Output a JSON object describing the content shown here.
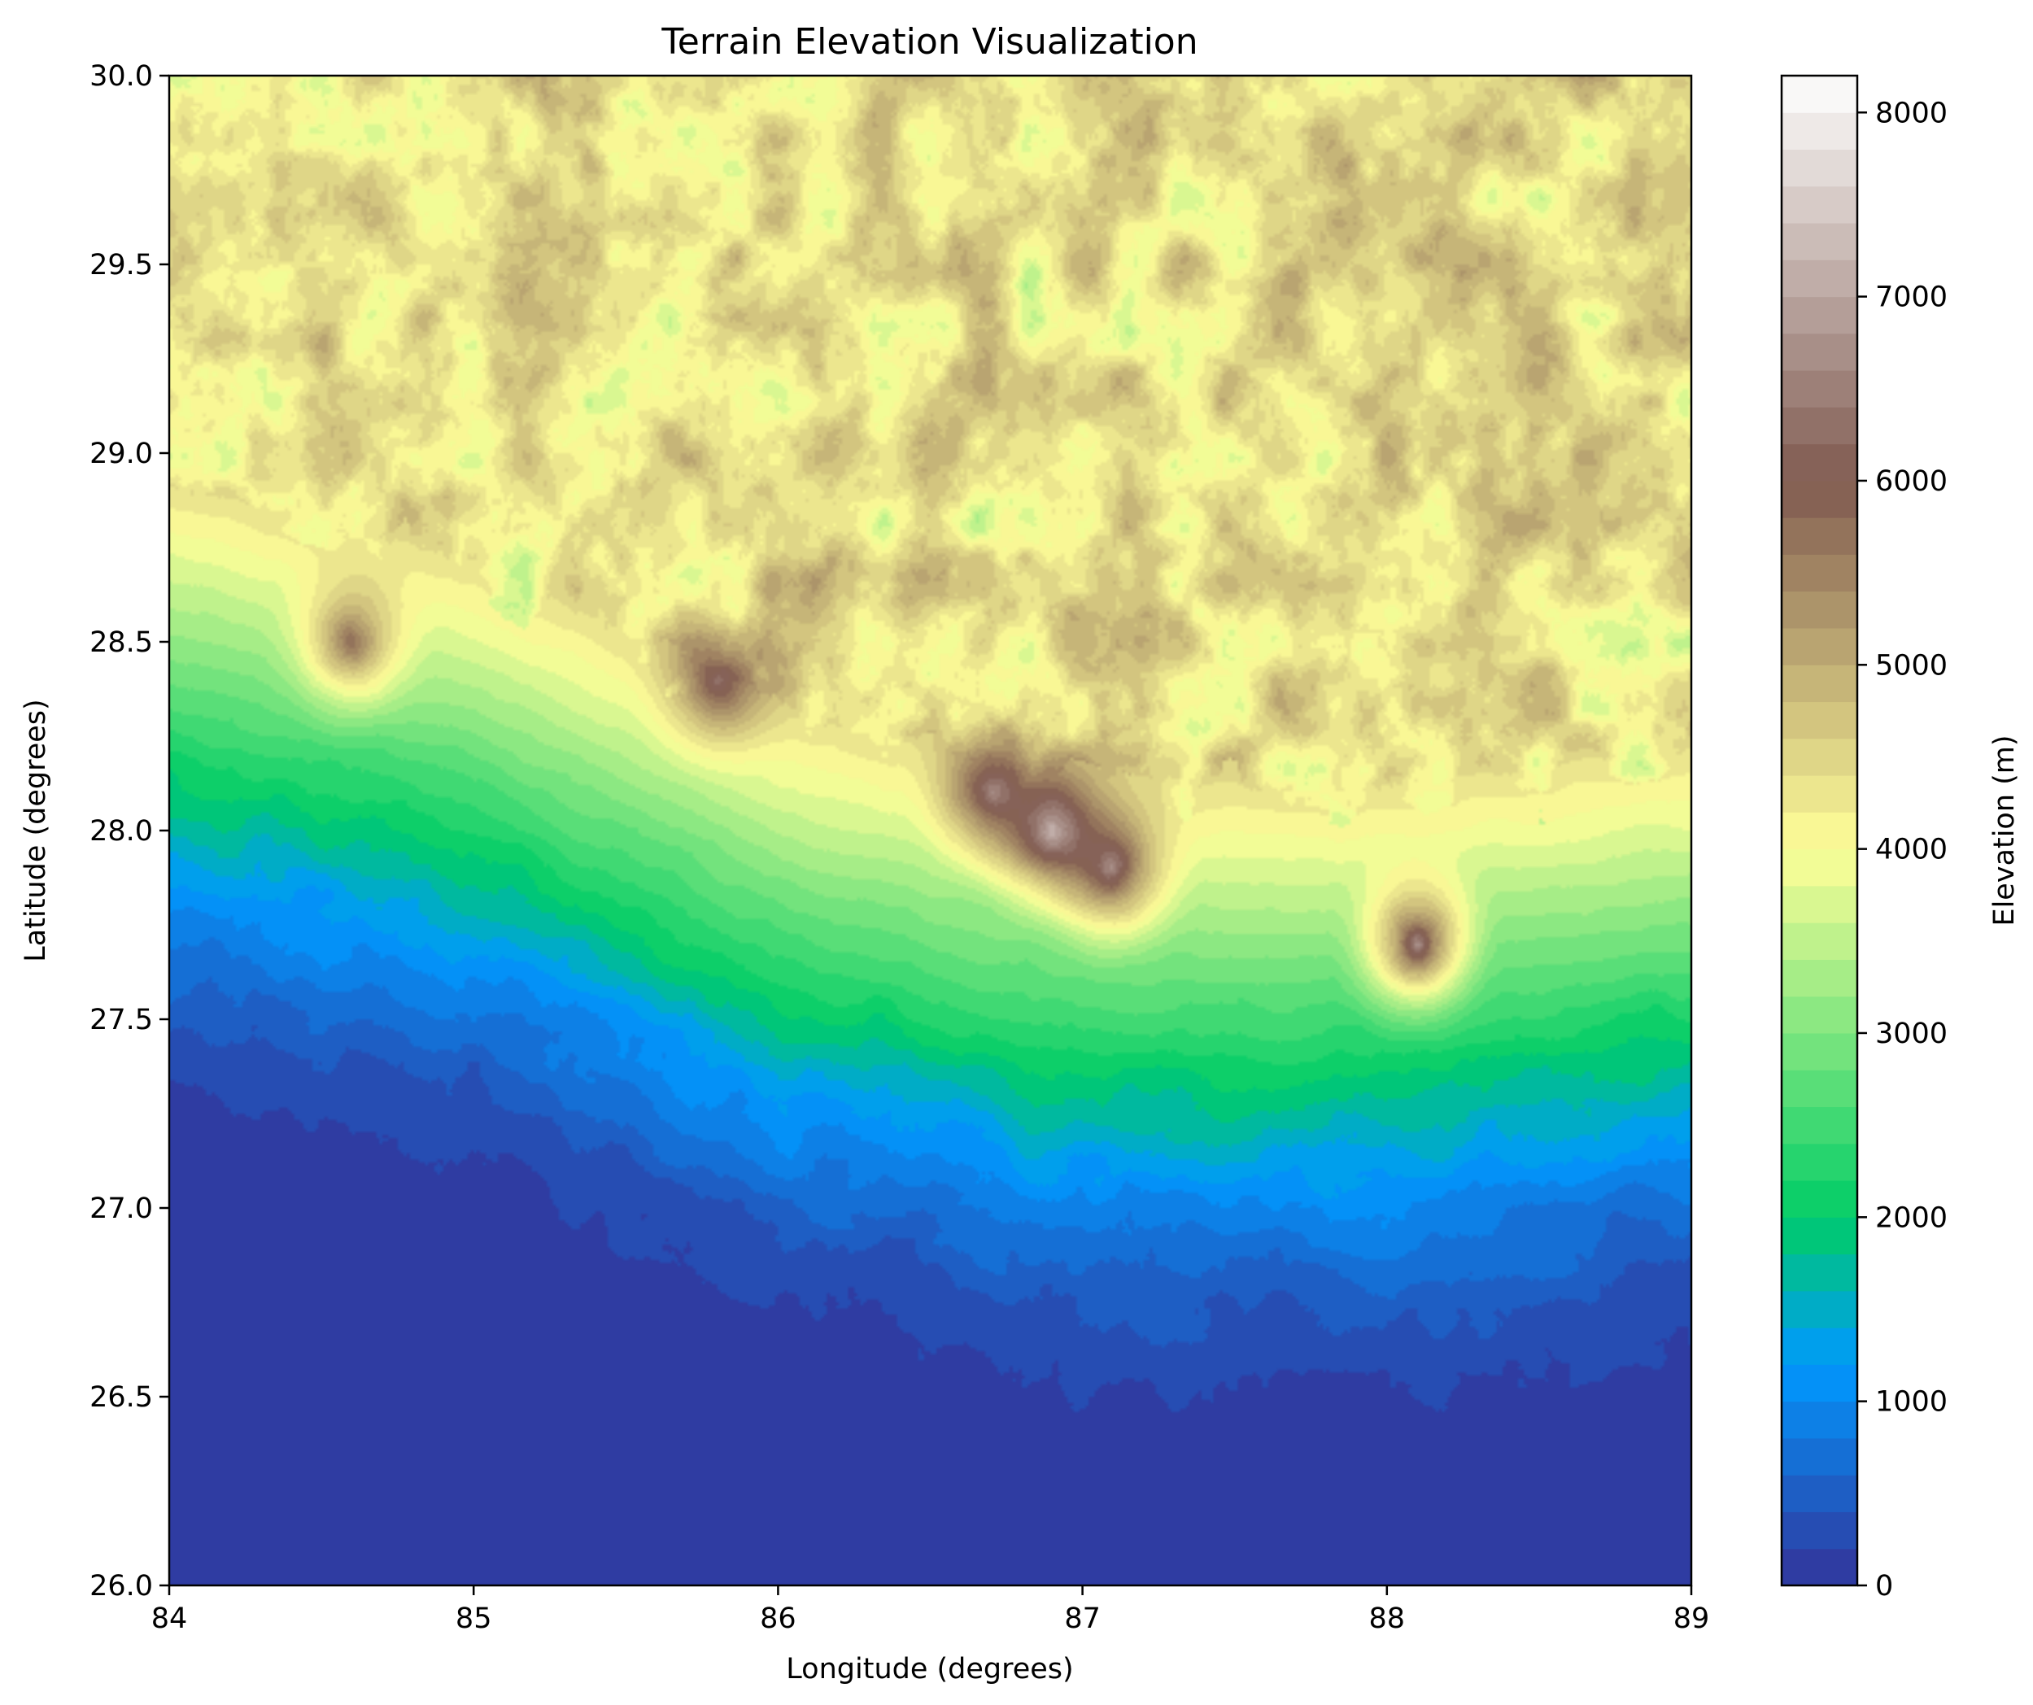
{
  "chart_data": {
    "type": "heatmap",
    "subtype": "filled-contour",
    "title": "Terrain Elevation Visualization",
    "xlabel": "Longitude (degrees)",
    "ylabel": "Latitude (degrees)",
    "colorbar_label": "Elevation (m)",
    "xlim": [
      84,
      89
    ],
    "ylim": [
      26,
      30
    ],
    "x_ticks": [
      "84",
      "85",
      "86",
      "87",
      "88",
      "89"
    ],
    "y_ticks": [
      "26.0",
      "26.5",
      "27.0",
      "27.5",
      "28.0",
      "28.5",
      "29.0",
      "29.5",
      "30.0"
    ],
    "colorbar_range": [
      0,
      8200
    ],
    "colorbar_ticks": [
      "0",
      "1000",
      "2000",
      "3000",
      "4000",
      "5000",
      "6000",
      "7000",
      "8000"
    ],
    "colormap": "terrain",
    "colormap_stops": [
      {
        "value": 0,
        "color": "#333399"
      },
      {
        "value": 1200,
        "color": "#0099ff"
      },
      {
        "value": 2000,
        "color": "#00cc66"
      },
      {
        "value": 4000,
        "color": "#ffff99"
      },
      {
        "value": 6000,
        "color": "#805a50"
      },
      {
        "value": 8200,
        "color": "#ffffff"
      }
    ],
    "grid": false,
    "features": [
      {
        "lon": 84.0,
        "lat": 27.8,
        "elevation": 1000
      },
      {
        "lon": 85.0,
        "lat": 27.6,
        "elevation": 900
      },
      {
        "lon": 86.0,
        "lat": 27.2,
        "elevation": 800
      },
      {
        "lon": 87.0,
        "lat": 27.0,
        "elevation": 1000
      },
      {
        "lon": 88.0,
        "lat": 27.0,
        "elevation": 1100
      },
      {
        "lon": 89.0,
        "lat": 27.1,
        "elevation": 1400
      },
      {
        "lon": 84.6,
        "lat": 28.5,
        "elevation": 6500
      },
      {
        "lon": 85.8,
        "lat": 28.4,
        "elevation": 6800
      },
      {
        "lon": 86.7,
        "lat": 28.1,
        "elevation": 7200
      },
      {
        "lon": 86.9,
        "lat": 28.0,
        "elevation": 8000
      },
      {
        "lon": 87.1,
        "lat": 27.9,
        "elevation": 7300
      },
      {
        "lon": 88.1,
        "lat": 27.7,
        "elevation": 7200
      },
      {
        "lon": 88.8,
        "lat": 29.3,
        "elevation": 4000
      },
      {
        "lon": 84.0,
        "lat": 29.4,
        "elevation": 4600
      }
    ]
  }
}
